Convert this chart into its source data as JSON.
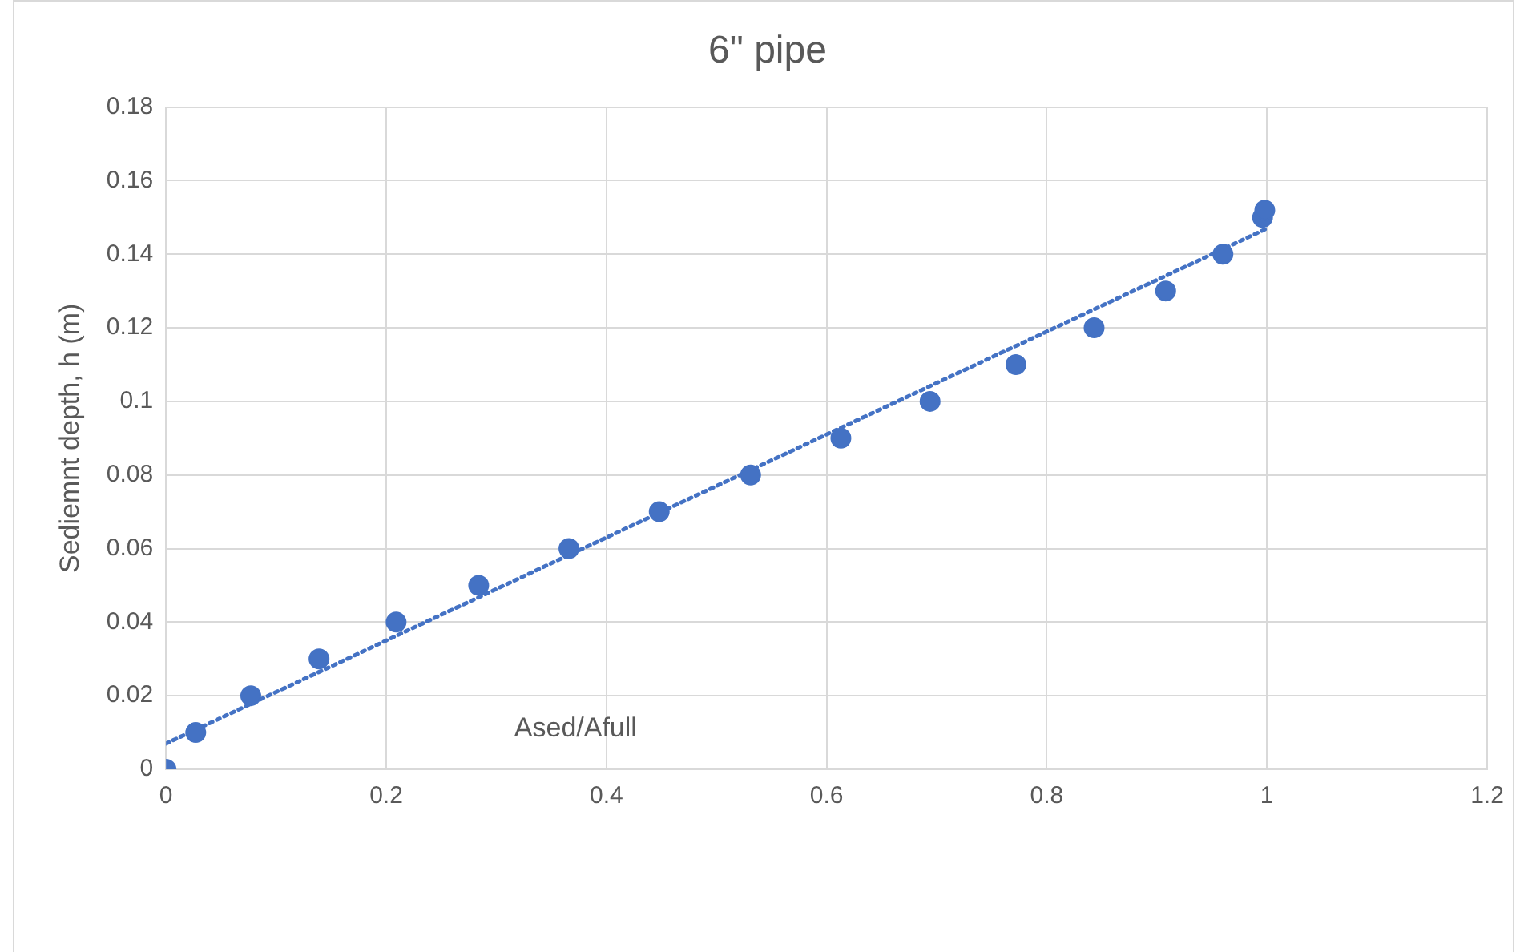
{
  "chart_data": {
    "type": "scatter",
    "title": "6\" pipe",
    "xlabel": "Ased/Afull",
    "ylabel": "Sediemnt depth, h (m)",
    "xlim": [
      0,
      1.2
    ],
    "xticks": [
      0,
      0.2,
      0.4,
      0.6,
      0.8,
      1,
      1.2
    ],
    "ylim": [
      0,
      0.18
    ],
    "yticks": [
      0,
      0.02,
      0.04,
      0.06,
      0.08,
      0.1,
      0.12,
      0.14,
      0.16,
      0.18
    ],
    "grid": true,
    "legend": false,
    "marker": "circle",
    "series": [
      {
        "color": "#4472c4",
        "x": [
          0,
          0.027,
          0.077,
          0.139,
          0.209,
          0.284,
          0.366,
          0.448,
          0.531,
          0.613,
          0.694,
          0.772,
          0.843,
          0.908,
          0.96,
          0.996,
          0.998
        ],
        "values": [
          0,
          0.01,
          0.02,
          0.03,
          0.04,
          0.05,
          0.06,
          0.07,
          0.08,
          0.09,
          0.1,
          0.11,
          0.12,
          0.13,
          0.14,
          0.15,
          0.152
        ]
      },
      {
        "type": "line",
        "color": "#4472c4",
        "line_style": "dotted",
        "marker": "none",
        "x": [
          0,
          1
        ],
        "values": [
          0.007,
          0.147
        ]
      }
    ]
  }
}
